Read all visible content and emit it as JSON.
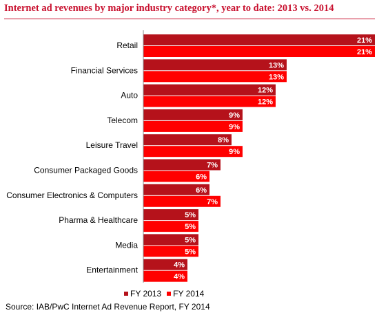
{
  "chart_data": {
    "type": "bar",
    "orientation": "horizontal",
    "title": "Internet ad revenues by major industry category*, year to date: 2013 vs. 2014",
    "categories": [
      "Retail",
      "Financial Services",
      "Auto",
      "Telecom",
      "Leisure Travel",
      "Consumer Packaged Goods",
      "Consumer Electronics & Computers",
      "Pharma & Healthcare",
      "Media",
      "Entertainment"
    ],
    "series": [
      {
        "name": "FY 2013",
        "values": [
          21,
          13,
          12,
          9,
          8,
          7,
          6,
          5,
          5,
          4
        ],
        "color": "#b5121b"
      },
      {
        "name": "FY 2014",
        "values": [
          21,
          13,
          12,
          9,
          9,
          6,
          7,
          5,
          5,
          4
        ],
        "color": "#ff0000"
      }
    ],
    "value_suffix": "%",
    "xlim": [
      0,
      21
    ],
    "grid": false,
    "legend_position": "bottom"
  },
  "source": "Source: IAB/PwC Internet Ad Revenue Report, FY 2014",
  "colors": {
    "title": "#c8102e",
    "axis": "#888888"
  }
}
